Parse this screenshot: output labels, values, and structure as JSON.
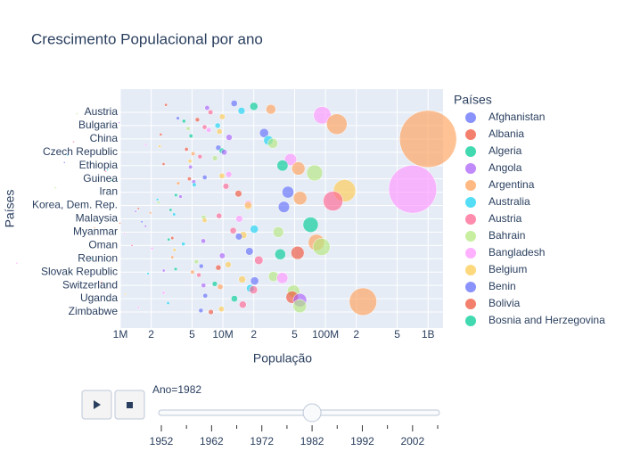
{
  "chart_data": {
    "type": "bubble",
    "title": "Crescimento Populacional por ano",
    "x_label": "População",
    "y_label": "Países",
    "legend_title": "Países",
    "log_x": true,
    "grid": true,
    "xlim": [
      1000000,
      1400000000
    ],
    "xticks": [
      {
        "value": 1000000,
        "label": "1M"
      },
      {
        "value": 2000000,
        "label": "2"
      },
      {
        "value": 5000000,
        "label": "5"
      },
      {
        "value": 10000000,
        "label": "10M"
      },
      {
        "value": 20000000,
        "label": "2"
      },
      {
        "value": 50000000,
        "label": "5"
      },
      {
        "value": 100000000,
        "label": "100M"
      },
      {
        "value": 200000000,
        "label": "2"
      },
      {
        "value": 500000000,
        "label": "5"
      },
      {
        "value": 1000000000,
        "label": "1B"
      }
    ],
    "palette": [
      "#636efa",
      "#EF553B",
      "#00cc96",
      "#ab63fa",
      "#FFA15A",
      "#19d3f3",
      "#FF6692",
      "#B6E880",
      "#FF97FF",
      "#FECB52"
    ],
    "legend": [
      "Afghanistan",
      "Albania",
      "Algeria",
      "Angola",
      "Argentina",
      "Australia",
      "Austria",
      "Bahrain",
      "Bangladesh",
      "Belgium",
      "Benin",
      "Bolivia",
      "Bosnia and Herzegovina"
    ],
    "categories": [
      null,
      null,
      null,
      null,
      null,
      null,
      "Austria",
      null,
      null,
      null,
      null,
      null,
      null,
      null,
      null,
      "Bulgaria",
      null,
      null,
      null,
      null,
      null,
      null,
      null,
      null,
      "China",
      null,
      null,
      null,
      null,
      null,
      null,
      null,
      null,
      "Czech Republic",
      null,
      null,
      null,
      null,
      null,
      null,
      null,
      null,
      "Ethiopia",
      null,
      null,
      null,
      null,
      null,
      null,
      null,
      null,
      "Guinea",
      null,
      null,
      null,
      null,
      null,
      null,
      null,
      null,
      "Iran",
      null,
      null,
      null,
      null,
      null,
      null,
      null,
      null,
      "Korea, Dem. Rep.",
      null,
      null,
      null,
      null,
      null,
      null,
      null,
      null,
      "Malaysia",
      null,
      null,
      null,
      null,
      null,
      null,
      null,
      null,
      "Myanmar",
      null,
      null,
      null,
      null,
      null,
      null,
      null,
      null,
      "Oman",
      null,
      null,
      null,
      null,
      null,
      null,
      null,
      null,
      "Reunion",
      null,
      null,
      null,
      null,
      null,
      null,
      null,
      null,
      "Slovak Republic",
      null,
      null,
      null,
      null,
      null,
      null,
      null,
      null,
      "Switzerland",
      null,
      null,
      null,
      null,
      null,
      null,
      null,
      null,
      "Uganda",
      null,
      null,
      null,
      null,
      null,
      null,
      null,
      null,
      "Zimbabwe"
    ],
    "values": [
      12880000,
      2780000,
      20030000,
      7020000,
      29340000,
      15180000,
      7570000,
      377000,
      93070000,
      9860000,
      3640000,
      5640000,
      4170000,
      970000,
      128960000,
      8890000,
      6630000,
      4580000,
      7270000,
      9250000,
      25200000,
      2480000,
      4880000,
      11490000,
      1000280000,
      27760000,
      350000,
      30650000,
      1770000,
      2420000,
      9030000,
      4410000,
      9790000,
      10300000,
      5120000,
      305000,
      5970000,
      8370000,
      45680000,
      4770000,
      285000,
      2640000,
      38110000,
      4830000,
      54430000,
      750000,
      720000,
      78340000,
      11400000,
      9790000,
      6650000,
      4710000,
      830000,
      5200000,
      3670000,
      5260000,
      10710000,
      233000,
      708000000,
      153340000,
      43070000,
      14170000,
      3480000,
      3860000,
      56540000,
      2300000,
      118450000,
      2350000,
      17660000,
      17650000,
      39330000,
      1500000,
      3090000,
      1410000,
      1960000,
      3340000,
      9170000,
      6500000,
      14440000,
      6630000,
      1620000,
      990000,
      71640000,
      1760000,
      560000,
      20200000,
      12590000,
      34680000,
      1100000,
      15800000,
      14310000,
      3210000,
      2960000,
      6440000,
      81550000,
      4110000,
      1300000,
      91460000,
      2040000,
      3370000,
      18130000,
      53460000,
      36230000,
      9860000,
      3210000,
      520000,
      22360000,
      5510000,
      98000,
      11250000,
      6150000,
      9030000,
      3460000,
      2650000,
      5050000,
      1860000,
      5830000,
      31140000,
      37980000,
      15410000,
      20370000,
      650000,
      8330000,
      6470000,
      9410000,
      18500000,
      19840000,
      48830000,
      2640000,
      1120000,
      6730000,
      47330000,
      12940000,
      56340000,
      232190000,
      2920000,
      15620000,
      56140000,
      1500000,
      9660000,
      6100000,
      7640000
    ],
    "slider": {
      "current_label": "Ano=1982",
      "current": 1982,
      "range": [
        1952,
        2007
      ],
      "steps": [
        1952,
        1957,
        1962,
        1967,
        1972,
        1977,
        1982,
        1987,
        1992,
        1997,
        2002,
        2007
      ],
      "labels": [
        1952,
        1962,
        1972,
        1982,
        1992,
        2002
      ]
    }
  }
}
